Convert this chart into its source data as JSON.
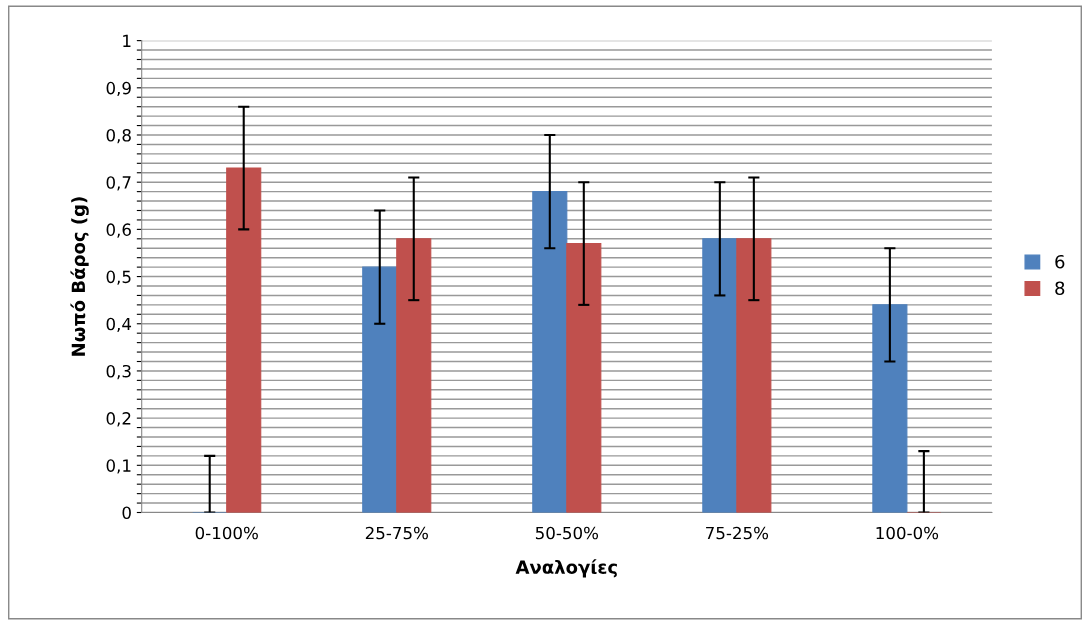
{
  "chart_data": {
    "type": "bar",
    "xlabel": "Αναλογίες",
    "ylabel": "Νωπό Βάρος (g)",
    "categories": [
      "0-100%",
      "25-75%",
      "50-50%",
      "75-25%",
      "100-0%"
    ],
    "series": [
      {
        "name": "6",
        "color": "#4f81bd",
        "values": [
          0,
          0.52,
          0.68,
          0.58,
          0.44
        ],
        "errors": [
          [
            0,
            0.12
          ],
          0.12,
          0.12,
          0.12,
          0.12
        ]
      },
      {
        "name": "8",
        "color": "#c0504d",
        "values": [
          0.73,
          0.58,
          0.57,
          0.58,
          0
        ],
        "errors": [
          0.13,
          0.13,
          0.13,
          0.13,
          [
            0,
            0.13
          ]
        ]
      }
    ],
    "ylim": [
      0,
      1
    ],
    "yticks": [
      0,
      {
        "value": 0.02,
        "label": null
      },
      {
        "value": 0.04,
        "label": null
      },
      {
        "value": 0.06,
        "label": null
      },
      {
        "value": 0.08,
        "label": null
      },
      {
        "value": 0.1,
        "label": "0,1"
      },
      {
        "value": 0.12,
        "label": null
      },
      {
        "value": 0.14,
        "label": null
      },
      {
        "value": 0.16,
        "label": null
      },
      {
        "value": 0.18,
        "label": null
      },
      {
        "value": 0.2,
        "label": "0,2"
      },
      {
        "value": 0.22,
        "label": null
      },
      {
        "value": 0.24,
        "label": null
      },
      {
        "value": 0.26,
        "label": null
      },
      {
        "value": 0.28,
        "label": null
      },
      {
        "value": 0.3,
        "label": "0,3"
      },
      {
        "value": 0.32,
        "label": null
      },
      {
        "value": 0.34,
        "label": null
      },
      {
        "value": 0.36,
        "label": null
      },
      {
        "value": 0.38,
        "label": null
      },
      {
        "value": 0.4,
        "label": "0,4"
      },
      {
        "value": 0.42,
        "label": null
      },
      {
        "value": 0.44,
        "label": null
      },
      {
        "value": 0.46,
        "label": null
      },
      {
        "value": 0.48,
        "label": null
      },
      {
        "value": 0.5,
        "label": "0,5"
      },
      {
        "value": 0.52,
        "label": null
      },
      {
        "value": 0.54,
        "label": null
      },
      {
        "value": 0.56,
        "label": null
      },
      {
        "value": 0.58,
        "label": null
      },
      {
        "value": 0.6,
        "label": "0,6"
      },
      {
        "value": 0.62,
        "label": null
      },
      {
        "value": 0.64,
        "label": null
      },
      {
        "value": 0.66,
        "label": null
      },
      {
        "value": 0.68,
        "label": null
      },
      {
        "value": 0.7,
        "label": "0,7"
      },
      {
        "value": 0.72,
        "label": null
      },
      {
        "value": 0.74,
        "label": null
      },
      {
        "value": 0.76,
        "label": null
      },
      {
        "value": 0.78,
        "label": null
      },
      {
        "value": 0.8,
        "label": "0,8"
      },
      {
        "value": 0.82,
        "label": null
      },
      {
        "value": 0.84,
        "label": null
      },
      {
        "value": 0.86,
        "label": null
      },
      {
        "value": 0.88,
        "label": null
      },
      {
        "value": 0.9,
        "label": "0,9"
      },
      {
        "value": 0.92,
        "label": null
      },
      {
        "value": 0.94,
        "label": null
      },
      {
        "value": 0.96,
        "label": null
      },
      {
        "value": 0.98,
        "label": null
      },
      1
    ],
    "grid": "y",
    "legend": "right"
  }
}
